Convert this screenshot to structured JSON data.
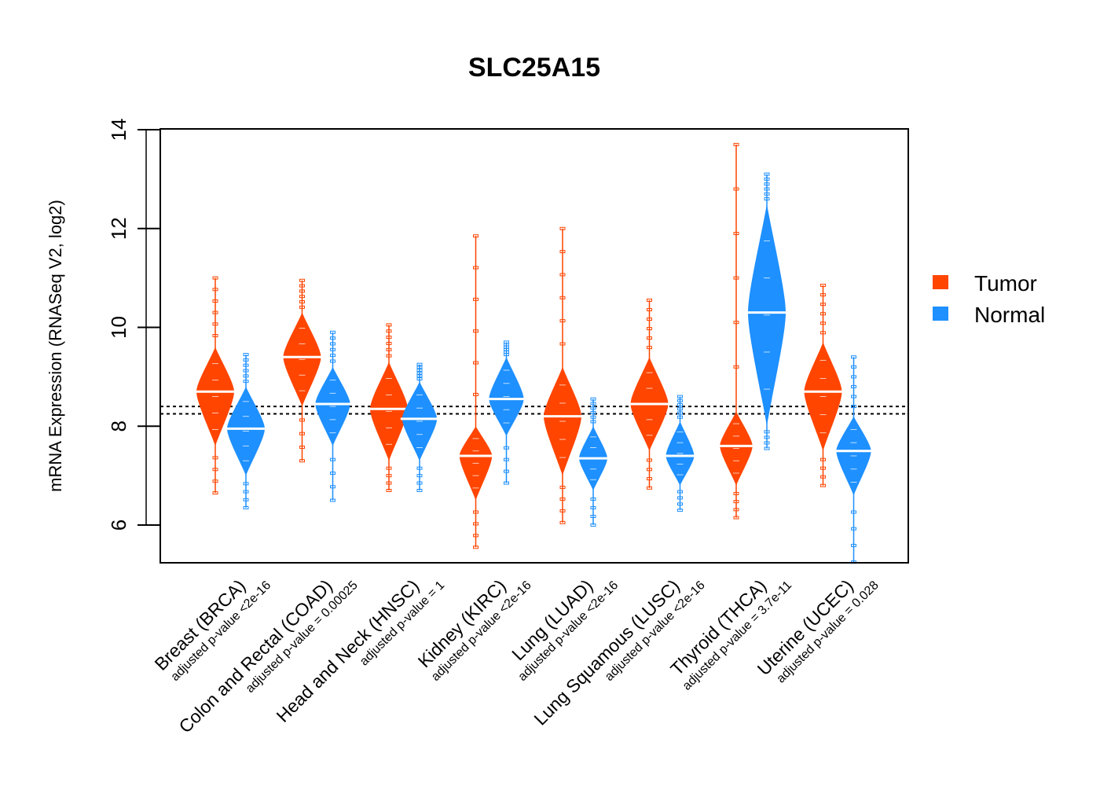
{
  "chart_data": {
    "type": "violin",
    "title": "SLC25A15",
    "xlabel": "",
    "ylabel": "mRNA Expression (RNASeq V2, log2)",
    "ylim": [
      5.25,
      14.0
    ],
    "yticks": [
      6,
      8,
      10,
      12,
      14
    ],
    "ytick_labels": [
      "6",
      "8",
      "10",
      "12",
      "14"
    ],
    "grid": false,
    "legend": {
      "position": "right",
      "entries": [
        {
          "name": "Tumor",
          "color": "#FF4500"
        },
        {
          "name": "Normal",
          "color": "#1E90FF"
        }
      ]
    },
    "reference_lines": [
      {
        "y": 8.4,
        "style": "dotted"
      },
      {
        "y": 8.25,
        "style": "dotted"
      }
    ],
    "categories": [
      {
        "name": "Breast (BRCA)",
        "p_label": "adjusted p-value <2e-16"
      },
      {
        "name": "Colon and Rectal (COAD)",
        "p_label": "adjusted p-value = 0.00025"
      },
      {
        "name": "Head and Neck (HNSC)",
        "p_label": "adjusted p-value = 1"
      },
      {
        "name": "Kidney (KIRC)",
        "p_label": "adjusted p-value <2e-16"
      },
      {
        "name": "Lung (LUAD)",
        "p_label": "adjusted p-value <2e-16"
      },
      {
        "name": "Lung Squamous (LUSC)",
        "p_label": "adjusted p-value <2e-16"
      },
      {
        "name": "Thyroid (THCA)",
        "p_label": "adjusted p-value = 3.7e-11"
      },
      {
        "name": "Uterine (UCEC)",
        "p_label": "adjusted p-value = 0.028"
      }
    ],
    "series": [
      {
        "name": "Tumor",
        "color": "#FF4500",
        "violins": [
          {
            "median": 8.7,
            "core_low": 7.6,
            "core_high": 9.6,
            "min": 6.65,
            "max": 11.0
          },
          {
            "median": 9.4,
            "core_low": 8.4,
            "core_high": 10.3,
            "min": 7.3,
            "max": 10.95
          },
          {
            "median": 8.35,
            "core_low": 7.3,
            "core_high": 9.3,
            "min": 6.7,
            "max": 10.05
          },
          {
            "median": 7.4,
            "core_low": 6.5,
            "core_high": 8.0,
            "min": 5.55,
            "max": 11.85
          },
          {
            "median": 8.2,
            "core_low": 7.0,
            "core_high": 9.2,
            "min": 6.05,
            "max": 12.0
          },
          {
            "median": 8.45,
            "core_low": 7.5,
            "core_high": 9.4,
            "min": 6.75,
            "max": 10.55
          },
          {
            "median": 7.6,
            "core_low": 6.8,
            "core_high": 8.3,
            "min": 6.15,
            "max": 13.7
          },
          {
            "median": 8.7,
            "core_low": 7.5,
            "core_high": 9.7,
            "min": 6.8,
            "max": 10.85
          }
        ]
      },
      {
        "name": "Normal",
        "color": "#1E90FF",
        "violins": [
          {
            "median": 7.95,
            "core_low": 7.0,
            "core_high": 8.8,
            "min": 6.35,
            "max": 9.45
          },
          {
            "median": 8.45,
            "core_low": 7.6,
            "core_high": 9.2,
            "min": 6.5,
            "max": 9.9
          },
          {
            "median": 8.15,
            "core_low": 7.3,
            "core_high": 8.9,
            "min": 6.7,
            "max": 9.25
          },
          {
            "median": 8.55,
            "core_low": 7.8,
            "core_high": 9.4,
            "min": 6.85,
            "max": 9.7
          },
          {
            "median": 7.35,
            "core_low": 6.7,
            "core_high": 8.0,
            "min": 6.0,
            "max": 8.55
          },
          {
            "median": 7.4,
            "core_low": 6.8,
            "core_high": 8.1,
            "min": 6.3,
            "max": 8.6
          },
          {
            "median": 10.3,
            "core_low": 8.0,
            "core_high": 12.5,
            "min": 7.55,
            "max": 13.1
          },
          {
            "median": 7.5,
            "core_low": 6.6,
            "core_high": 8.2,
            "min": 5.25,
            "max": 9.4
          }
        ]
      }
    ]
  }
}
